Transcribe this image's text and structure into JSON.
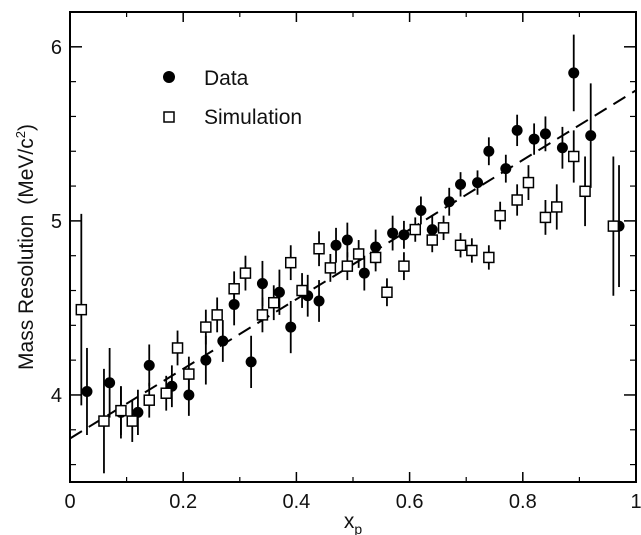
{
  "chart_data": {
    "type": "scatter",
    "title": "",
    "xlabel": "x",
    "xlabel_sub": "p",
    "ylabel": "Mass Resolution",
    "yunit_prefix": "(MeV/c",
    "yunit_sup": "2",
    "yunit_suffix": ")",
    "xlim": [
      0,
      1.0
    ],
    "ylim": [
      3.5,
      6.2
    ],
    "xticks": [
      0,
      0.2,
      0.4,
      0.6,
      0.8,
      1
    ],
    "xtick_labels": [
      "0",
      "0.2",
      "0.4",
      "0.6",
      "0.8",
      "1"
    ],
    "yticks": [
      4,
      5,
      6
    ],
    "ytick_labels": [
      "4",
      "5",
      "6"
    ],
    "grid": false,
    "legend_position": "top-left",
    "series": [
      {
        "name": "Data",
        "marker": "filled-circle",
        "color": "#000000",
        "points": [
          {
            "x": 0.03,
            "y": 4.02,
            "err": 0.25
          },
          {
            "x": 0.07,
            "y": 4.07,
            "err": 0.2
          },
          {
            "x": 0.09,
            "y": 3.9,
            "err": 0.15
          },
          {
            "x": 0.12,
            "y": 3.9,
            "err": 0.13
          },
          {
            "x": 0.14,
            "y": 4.17,
            "err": 0.12
          },
          {
            "x": 0.18,
            "y": 4.05,
            "err": 0.12
          },
          {
            "x": 0.21,
            "y": 4.0,
            "err": 0.12
          },
          {
            "x": 0.24,
            "y": 4.2,
            "err": 0.14
          },
          {
            "x": 0.27,
            "y": 4.31,
            "err": 0.12
          },
          {
            "x": 0.29,
            "y": 4.52,
            "err": 0.12
          },
          {
            "x": 0.32,
            "y": 4.19,
            "err": 0.15
          },
          {
            "x": 0.34,
            "y": 4.64,
            "err": 0.13
          },
          {
            "x": 0.37,
            "y": 4.59,
            "err": 0.13
          },
          {
            "x": 0.39,
            "y": 4.39,
            "err": 0.15
          },
          {
            "x": 0.42,
            "y": 4.57,
            "err": 0.12
          },
          {
            "x": 0.44,
            "y": 4.54,
            "err": 0.12
          },
          {
            "x": 0.47,
            "y": 4.86,
            "err": 0.1
          },
          {
            "x": 0.49,
            "y": 4.89,
            "err": 0.1
          },
          {
            "x": 0.52,
            "y": 4.7,
            "err": 0.1
          },
          {
            "x": 0.54,
            "y": 4.85,
            "err": 0.1
          },
          {
            "x": 0.57,
            "y": 4.93,
            "err": 0.1
          },
          {
            "x": 0.59,
            "y": 4.92,
            "err": 0.08
          },
          {
            "x": 0.62,
            "y": 5.06,
            "err": 0.08
          },
          {
            "x": 0.64,
            "y": 4.95,
            "err": 0.08
          },
          {
            "x": 0.67,
            "y": 5.11,
            "err": 0.08
          },
          {
            "x": 0.69,
            "y": 5.21,
            "err": 0.07
          },
          {
            "x": 0.72,
            "y": 5.22,
            "err": 0.07
          },
          {
            "x": 0.74,
            "y": 5.4,
            "err": 0.08
          },
          {
            "x": 0.77,
            "y": 5.3,
            "err": 0.08
          },
          {
            "x": 0.79,
            "y": 5.52,
            "err": 0.09
          },
          {
            "x": 0.82,
            "y": 5.47,
            "err": 0.09
          },
          {
            "x": 0.84,
            "y": 5.5,
            "err": 0.1
          },
          {
            "x": 0.87,
            "y": 5.42,
            "err": 0.12
          },
          {
            "x": 0.89,
            "y": 5.85,
            "err": 0.22
          },
          {
            "x": 0.92,
            "y": 5.49,
            "err": 0.3
          },
          {
            "x": 0.97,
            "y": 4.97,
            "err": 0.35
          }
        ]
      },
      {
        "name": "Simulation",
        "marker": "open-square",
        "color": "#000000",
        "points": [
          {
            "x": 0.02,
            "y": 4.49,
            "err": 0.55
          },
          {
            "x": 0.06,
            "y": 3.85,
            "err": 0.3
          },
          {
            "x": 0.09,
            "y": 3.91,
            "err": 0.14
          },
          {
            "x": 0.11,
            "y": 3.85,
            "err": 0.12
          },
          {
            "x": 0.14,
            "y": 3.97,
            "err": 0.1
          },
          {
            "x": 0.17,
            "y": 4.01,
            "err": 0.1
          },
          {
            "x": 0.19,
            "y": 4.27,
            "err": 0.1
          },
          {
            "x": 0.21,
            "y": 4.12,
            "err": 0.1
          },
          {
            "x": 0.24,
            "y": 4.39,
            "err": 0.1
          },
          {
            "x": 0.26,
            "y": 4.46,
            "err": 0.1
          },
          {
            "x": 0.29,
            "y": 4.61,
            "err": 0.1
          },
          {
            "x": 0.31,
            "y": 4.7,
            "err": 0.1
          },
          {
            "x": 0.34,
            "y": 4.46,
            "err": 0.1
          },
          {
            "x": 0.36,
            "y": 4.53,
            "err": 0.1
          },
          {
            "x": 0.39,
            "y": 4.76,
            "err": 0.1
          },
          {
            "x": 0.41,
            "y": 4.6,
            "err": 0.1
          },
          {
            "x": 0.44,
            "y": 4.84,
            "err": 0.1
          },
          {
            "x": 0.46,
            "y": 4.73,
            "err": 0.08
          },
          {
            "x": 0.49,
            "y": 4.74,
            "err": 0.08
          },
          {
            "x": 0.51,
            "y": 4.81,
            "err": 0.08
          },
          {
            "x": 0.54,
            "y": 4.79,
            "err": 0.08
          },
          {
            "x": 0.56,
            "y": 4.59,
            "err": 0.08
          },
          {
            "x": 0.59,
            "y": 4.74,
            "err": 0.08
          },
          {
            "x": 0.61,
            "y": 4.95,
            "err": 0.07
          },
          {
            "x": 0.64,
            "y": 4.89,
            "err": 0.07
          },
          {
            "x": 0.66,
            "y": 4.96,
            "err": 0.07
          },
          {
            "x": 0.69,
            "y": 4.86,
            "err": 0.07
          },
          {
            "x": 0.71,
            "y": 4.83,
            "err": 0.07
          },
          {
            "x": 0.74,
            "y": 4.79,
            "err": 0.07
          },
          {
            "x": 0.76,
            "y": 5.03,
            "err": 0.08
          },
          {
            "x": 0.79,
            "y": 5.12,
            "err": 0.09
          },
          {
            "x": 0.81,
            "y": 5.22,
            "err": 0.1
          },
          {
            "x": 0.84,
            "y": 5.02,
            "err": 0.1
          },
          {
            "x": 0.86,
            "y": 5.08,
            "err": 0.13
          },
          {
            "x": 0.89,
            "y": 5.37,
            "err": 0.15
          },
          {
            "x": 0.91,
            "y": 5.17,
            "err": 0.2
          },
          {
            "x": 0.96,
            "y": 4.97,
            "err": 0.4
          }
        ]
      }
    ],
    "fit_line": {
      "style": "dashed",
      "points": [
        [
          0.0,
          3.75
        ],
        [
          1.0,
          5.75
        ]
      ]
    }
  }
}
